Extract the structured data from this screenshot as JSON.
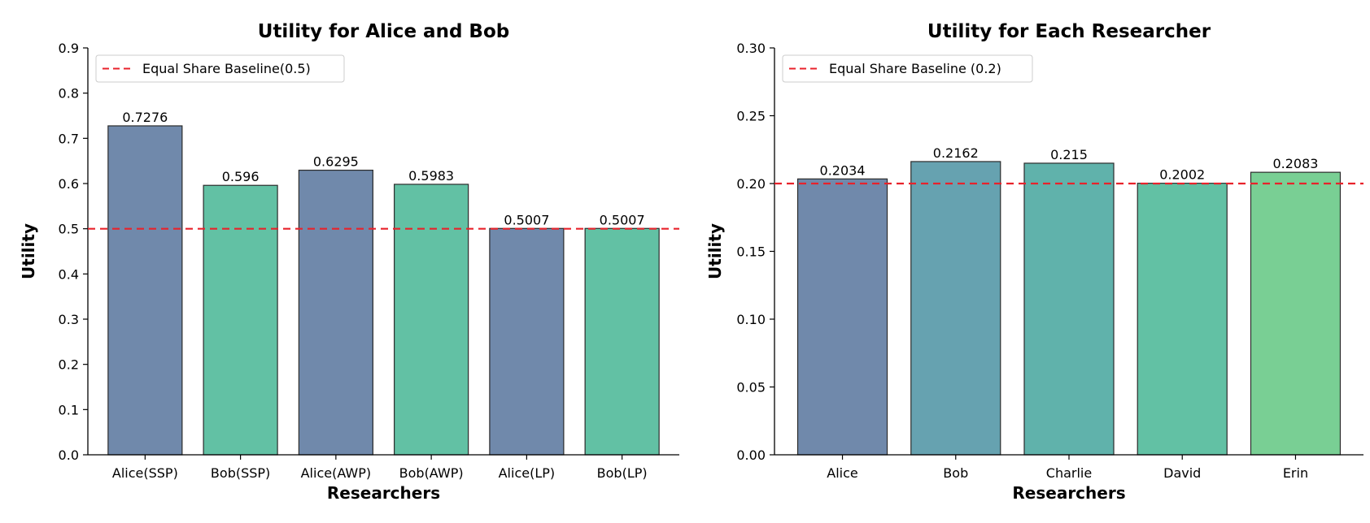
{
  "chart_data": [
    {
      "type": "bar",
      "title": "Utility for Alice and Bob",
      "xlabel": "Researchers",
      "ylabel": "Utility",
      "categories": [
        "Alice(SSP)",
        "Bob(SSP)",
        "Alice(AWP)",
        "Bob(AWP)",
        "Alice(LP)",
        "Bob(LP)"
      ],
      "values": [
        0.7276,
        0.596,
        0.6295,
        0.5983,
        0.5007,
        0.5007
      ],
      "value_labels": [
        "0.7276",
        "0.596",
        "0.6295",
        "0.5983",
        "0.5007",
        "0.5007"
      ],
      "bar_colors": [
        "#7089ab",
        "#62c1a4",
        "#7089ab",
        "#62c1a4",
        "#7089ab",
        "#62c1a4"
      ],
      "ylim": [
        0,
        0.9
      ],
      "yticks": [
        0.0,
        0.1,
        0.2,
        0.3,
        0.4,
        0.5,
        0.6,
        0.7,
        0.8,
        0.9
      ],
      "ytick_labels": [
        "0.0",
        "0.1",
        "0.2",
        "0.3",
        "0.4",
        "0.5",
        "0.6",
        "0.7",
        "0.8",
        "0.9"
      ],
      "baseline": {
        "value": 0.5,
        "label": "Equal Share Baseline(0.5)",
        "color": "#e8222b"
      },
      "legend_position": "top-left",
      "grid": false
    },
    {
      "type": "bar",
      "title": "Utility for Each Researcher",
      "xlabel": "Researchers",
      "ylabel": "Utility",
      "categories": [
        "Alice",
        "Bob",
        "Charlie",
        "David",
        "Erin"
      ],
      "values": [
        0.2034,
        0.2162,
        0.215,
        0.2002,
        0.2083
      ],
      "value_labels": [
        "0.2034",
        "0.2162",
        "0.215",
        "0.2002",
        "0.2083"
      ],
      "bar_colors": [
        "#7089ab",
        "#66a2b0",
        "#60b2ab",
        "#62c1a4",
        "#79cf94"
      ],
      "ylim": [
        0,
        0.3
      ],
      "yticks": [
        0.0,
        0.05,
        0.1,
        0.15,
        0.2,
        0.25,
        0.3
      ],
      "ytick_labels": [
        "0.00",
        "0.05",
        "0.10",
        "0.15",
        "0.20",
        "0.25",
        "0.30"
      ],
      "baseline": {
        "value": 0.2,
        "label": "Equal Share Baseline (0.2)",
        "color": "#e8222b"
      },
      "legend_position": "top-left",
      "grid": false
    }
  ]
}
